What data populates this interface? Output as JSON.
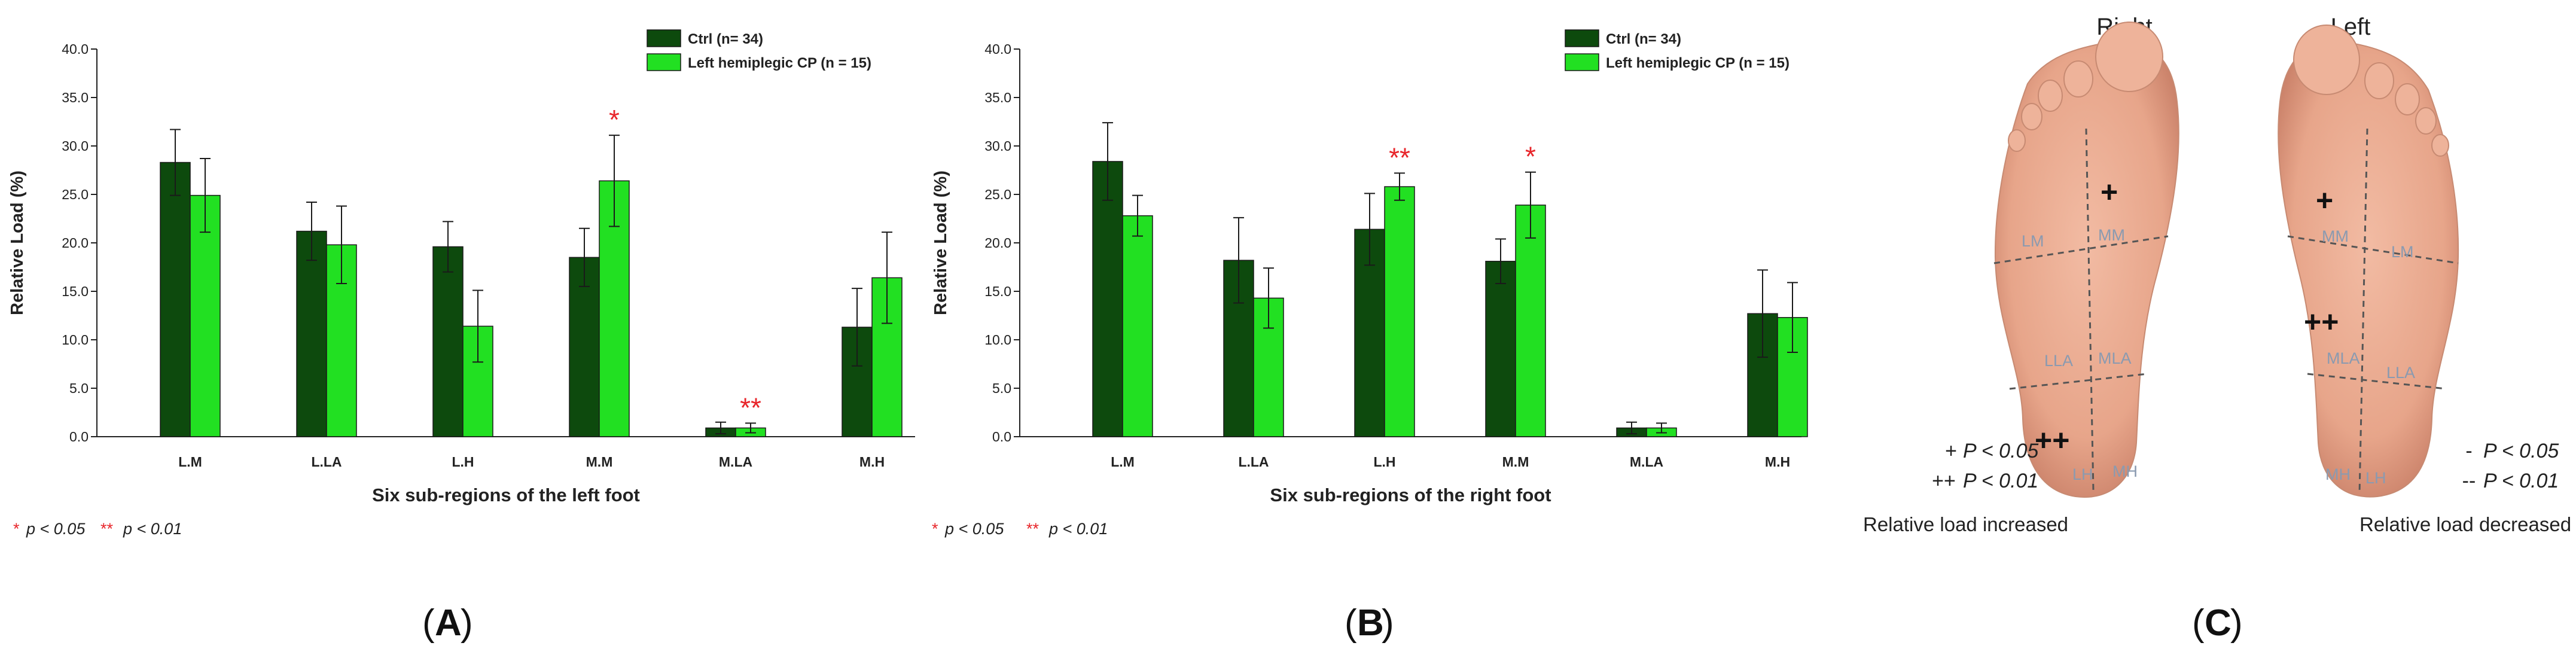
{
  "panel_labels": [
    "A",
    "B",
    "C"
  ],
  "chart_data": [
    {
      "type": "bar",
      "categories": [
        "L.M",
        "L.LA",
        "L.H",
        "M.M",
        "M.LA",
        "M.H"
      ],
      "series": [
        {
          "name": "Ctrl (n= 34)",
          "values": [
            28.3,
            21.2,
            19.6,
            18.5,
            0.9,
            11.3
          ],
          "errors": [
            3.4,
            3.0,
            2.6,
            3.0,
            0.6,
            4.0
          ]
        },
        {
          "name": "Left hemiplegic CP (n = 15)",
          "values": [
            24.9,
            19.8,
            11.4,
            26.4,
            0.9,
            16.4
          ],
          "errors": [
            3.8,
            4.0,
            3.7,
            4.7,
            0.5,
            4.7
          ]
        }
      ],
      "significance": [
        null,
        null,
        null,
        "*",
        "**",
        null
      ],
      "title": "",
      "xlabel": "Six sub-regions of the left foot",
      "ylabel": "Relative Load (%)",
      "ylim": [
        0,
        40
      ],
      "yticks": [
        "0.0",
        "5.0",
        "10.0",
        "15.0",
        "20.0",
        "25.0",
        "30.0",
        "35.0",
        "40.0"
      ],
      "legend_position": "top-right",
      "grid": false
    },
    {
      "type": "bar",
      "categories": [
        "L.M",
        "L.LA",
        "L.H",
        "M.M",
        "M.LA",
        "M.H"
      ],
      "series": [
        {
          "name": "Ctrl (n= 34)",
          "values": [
            28.4,
            18.2,
            21.4,
            18.1,
            0.9,
            12.7
          ],
          "errors": [
            4.0,
            4.4,
            3.7,
            2.3,
            0.6,
            4.5
          ]
        },
        {
          "name": "Left hemiplegic CP (n = 15)",
          "values": [
            22.8,
            14.3,
            25.8,
            23.9,
            0.9,
            12.3
          ],
          "errors": [
            2.1,
            3.1,
            1.4,
            3.4,
            0.5,
            3.6
          ]
        }
      ],
      "significance": [
        null,
        null,
        "**",
        "*",
        null,
        null
      ],
      "title": "",
      "xlabel": "Six sub-regions of the right foot",
      "ylabel": "Relative Load (%)",
      "ylim": [
        0,
        40
      ],
      "yticks": [
        "0.0",
        "5.0",
        "10.0",
        "15.0",
        "20.0",
        "25.0",
        "30.0",
        "35.0",
        "40.0"
      ],
      "legend_position": "top-right",
      "grid": false
    }
  ],
  "pvalue_note": {
    "one_star": "*",
    "one_star_text": "p < 0.05",
    "two_star": "**",
    "two_star_text": "p < 0.01"
  },
  "panel_c": {
    "right_title": "Right",
    "left_title": "Left",
    "right_regions": [
      "LM",
      "MM",
      "LLA",
      "MLA",
      "LH",
      "MH"
    ],
    "left_regions": [
      "MM",
      "LM",
      "MLA",
      "LLA",
      "MH",
      "LH"
    ],
    "right_markers": [
      "+",
      "++"
    ],
    "left_markers": [
      "+",
      "++"
    ],
    "increase_legend": [
      {
        "symbol": "+",
        "text": "P < 0.05"
      },
      {
        "symbol": "++",
        "text": "P < 0.01"
      }
    ],
    "increase_caption": "Relative load increased",
    "decrease_legend": [
      {
        "symbol": "-",
        "text": "P < 0.05"
      },
      {
        "symbol": "--",
        "text": "P < 0.01"
      }
    ],
    "decrease_caption": "Relative load decreased"
  },
  "colors": {
    "ctrl": "#0d4a0d",
    "cp": "#22e022",
    "significance": "#e8262b",
    "axis": "#222222",
    "foot": "#e8a890",
    "foot_dark": "#c98068",
    "region_label": "#8a9ab0"
  }
}
